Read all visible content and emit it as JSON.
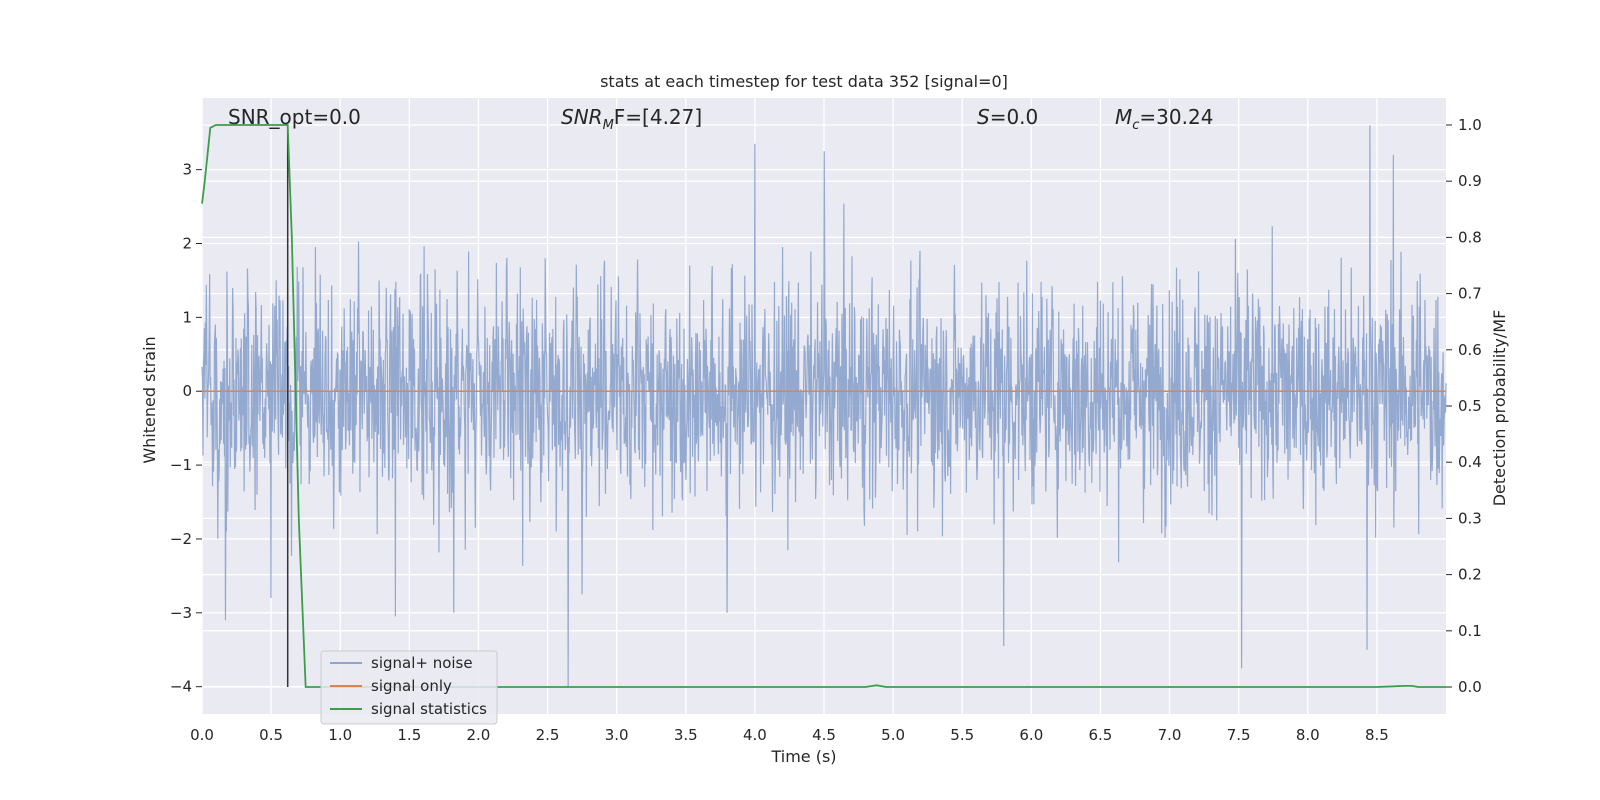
{
  "chart_data": {
    "type": "line",
    "title": "stats at each timestep for test data 352 [signal=0]",
    "xlabel": "Time (s)",
    "ylabel": "Whitened strain",
    "y2label": "Detection probability/MF",
    "xlim": [
      0.0,
      9.0
    ],
    "ylim": [
      -4.37,
      3.97
    ],
    "y2lim": [
      -0.048,
      1.048
    ],
    "xticks": [
      "0.0",
      "0.5",
      "1.0",
      "1.5",
      "2.0",
      "2.5",
      "3.0",
      "3.5",
      "4.0",
      "4.5",
      "5.0",
      "5.5",
      "6.0",
      "6.5",
      "7.0",
      "7.5",
      "8.0",
      "8.5"
    ],
    "yticks": [
      "3",
      "2",
      "1",
      "0",
      "−1",
      "−2",
      "−3",
      "−4"
    ],
    "y2ticks": [
      "1.0",
      "0.9",
      "0.8",
      "0.7",
      "0.6",
      "0.5",
      "0.4",
      "0.3",
      "0.2",
      "0.1",
      "0.0"
    ],
    "grid": true,
    "legend_position": "lower-left",
    "annotations": {
      "snr_opt": "SNR_opt=0.0",
      "snr_mf_base": "SNR",
      "snr_mf_sub": "M",
      "snr_mf_rest": "F=[4.27]",
      "s_var": "S",
      "s_rest": "=0.0",
      "mc_var": "M",
      "mc_sub": "c",
      "mc_rest": "=30.24"
    },
    "series": [
      {
        "name": "signal+ noise",
        "color": "#8fa5cc",
        "description_values": "dense noise, approx range -3.6 to 3.6",
        "spikes": [
          {
            "t": 0.17,
            "v": -3.1
          },
          {
            "t": 0.5,
            "v": -2.8
          },
          {
            "t": 1.4,
            "v": -3.05
          },
          {
            "t": 1.82,
            "v": -3.0
          },
          {
            "t": 2.65,
            "v": -4.0
          },
          {
            "t": 2.75,
            "v": -2.75
          },
          {
            "t": 3.8,
            "v": -3.0
          },
          {
            "t": 4.0,
            "v": 3.35
          },
          {
            "t": 4.5,
            "v": 3.25
          },
          {
            "t": 5.8,
            "v": -3.45
          },
          {
            "t": 7.52,
            "v": -3.75
          },
          {
            "t": 8.43,
            "v": -3.5
          },
          {
            "t": 8.45,
            "v": 3.6
          },
          {
            "t": 8.62,
            "v": 3.2
          }
        ]
      },
      {
        "name": "signal only",
        "color": "#dd8452",
        "x": [
          0.0,
          9.0
        ],
        "y": [
          0.0,
          0.0
        ]
      },
      {
        "name": "signal statistics",
        "color": "#3a9e4b",
        "axis": "right",
        "x": [
          0.0,
          0.02,
          0.06,
          0.1,
          0.2,
          0.3,
          0.4,
          0.5,
          0.55,
          0.6,
          0.62,
          0.65,
          0.7,
          0.75,
          1.0,
          2.0,
          3.0,
          4.0,
          4.8,
          4.88,
          4.95,
          5.5,
          6.5,
          7.5,
          8.5,
          8.7,
          8.75,
          8.8,
          9.0
        ],
        "y": [
          0.86,
          0.9,
          0.995,
          1.0,
          1.0,
          1.0,
          1.0,
          1.0,
          1.0,
          1.0,
          1.0,
          0.8,
          0.3,
          0.0,
          0.0,
          0.0,
          0.0,
          0.0,
          0.0,
          0.003,
          0.0,
          0.0,
          0.0,
          0.0,
          0.0,
          0.002,
          0.002,
          0.0,
          0.0
        ]
      }
    ],
    "vline_x": 0.62,
    "vline_color": "#333333"
  }
}
